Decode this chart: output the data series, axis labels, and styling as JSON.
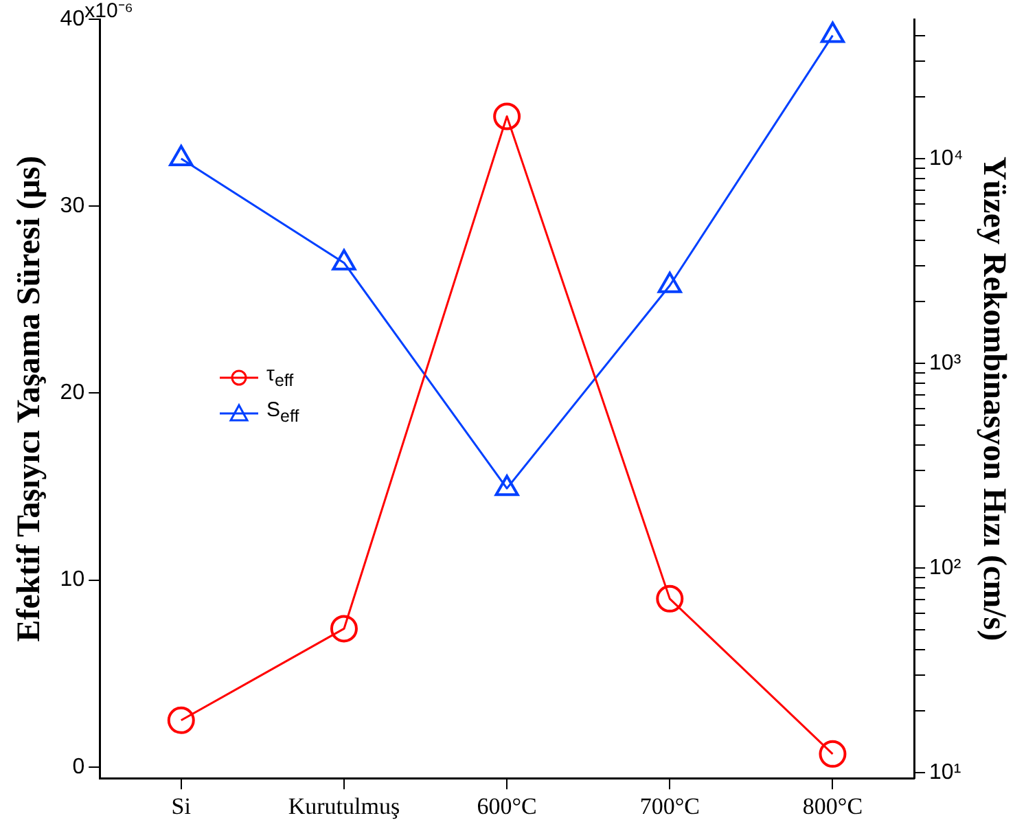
{
  "chart_data": {
    "type": "line",
    "xlabel": null,
    "ylabel": "Efektif Taşıyıcı Yaşama Süresi (µs)",
    "y2label": "Yüzey Rekombinasyon Hızı (cm/s)",
    "categories": [
      "Si",
      "Kurutulmuş",
      "600°C",
      "700°C",
      "800°C"
    ],
    "series": [
      {
        "name": "τ$_{eff}$",
        "color": "#ff0000",
        "marker": "circle",
        "values": [
          2.5,
          7.4,
          34.8,
          9.0,
          0.7
        ]
      },
      {
        "name": "S$_{eff}$",
        "color": "#0040ff",
        "marker": "triangle",
        "axis": "y2",
        "values": [
          10000,
          3100,
          245,
          2400,
          40000
        ]
      }
    ],
    "ylim": [
      -0.6,
      40
    ],
    "yticks": [
      0,
      10,
      20,
      30,
      40
    ],
    "annotations": [
      "x10⁻⁶"
    ],
    "log": "y2",
    "y2lim": [
      9.4,
      48000
    ],
    "y2ticks": [
      {
        "value": 10,
        "label": "10¹"
      },
      {
        "value": 20,
        "label": null
      },
      {
        "value": 30,
        "label": null
      },
      {
        "value": 40,
        "label": null
      },
      {
        "value": 50,
        "label": null
      },
      {
        "value": 60,
        "label": null
      },
      {
        "value": 70,
        "label": null
      },
      {
        "value": 80,
        "label": null
      },
      {
        "value": 90,
        "label": null
      },
      {
        "value": 100,
        "label": "10²"
      },
      {
        "value": 200,
        "label": null
      },
      {
        "value": 300,
        "label": null
      },
      {
        "value": 400,
        "label": null
      },
      {
        "value": 500,
        "label": null
      },
      {
        "value": 600,
        "label": null
      },
      {
        "value": 700,
        "label": null
      },
      {
        "value": 800,
        "label": null
      },
      {
        "value": 900,
        "label": null
      },
      {
        "value": 1000,
        "label": "10³"
      },
      {
        "value": 2000,
        "label": null
      },
      {
        "value": 3000,
        "label": null
      },
      {
        "value": 4000,
        "label": null
      },
      {
        "value": 5000,
        "label": null
      },
      {
        "value": 6000,
        "label": null
      },
      {
        "value": 7000,
        "label": null
      },
      {
        "value": 8000,
        "label": null
      },
      {
        "value": 9000,
        "label": null
      },
      {
        "value": 10000,
        "label": "10⁴"
      },
      {
        "value": 20000,
        "label": null
      },
      {
        "value": 30000,
        "label": null
      },
      {
        "value": 40000,
        "label": null
      }
    ],
    "grid": false,
    "legend": "left",
    "line_style": "solid"
  }
}
